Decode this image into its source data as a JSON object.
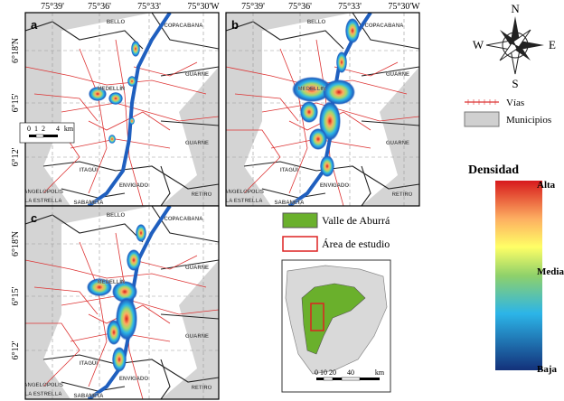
{
  "panels": [
    {
      "label": "a"
    },
    {
      "label": "b"
    },
    {
      "label": "c"
    }
  ],
  "top_ticks": [
    "75°39'",
    "75°36'",
    "75°33'",
    "75°30'W"
  ],
  "left_ticks": [
    "6°18'N",
    "6°15'",
    "6°12'"
  ],
  "places": {
    "bello": "BELLO",
    "copacabana": "COPACABANA",
    "guarne": "GUARNE",
    "medellin": "MEDELLÍN",
    "itagui": "ITAGÜÍ",
    "envigado": "ENVIGADO",
    "retiro": "RETIRO",
    "angelopolis": "ANGELÓPOLIS",
    "la_estrella": "LA ESTRELLA",
    "sabaneta": "SABANETA"
  },
  "scale_bar": [
    "0",
    "1",
    "2",
    "4",
    "km"
  ],
  "compass": {
    "n": "N",
    "s": "S",
    "e": "E",
    "w": "W"
  },
  "legend": {
    "roads": "Vías",
    "municipalities": "Municipios"
  },
  "density": {
    "title": "Densidad",
    "high": "Alta",
    "medium": "Media",
    "low": "Baja"
  },
  "inset_legend": {
    "valley": "Valle de Aburrá",
    "study_area": "Área de estudio"
  },
  "inset_scale": [
    "0",
    "10",
    "20",
    "40",
    "km"
  ]
}
